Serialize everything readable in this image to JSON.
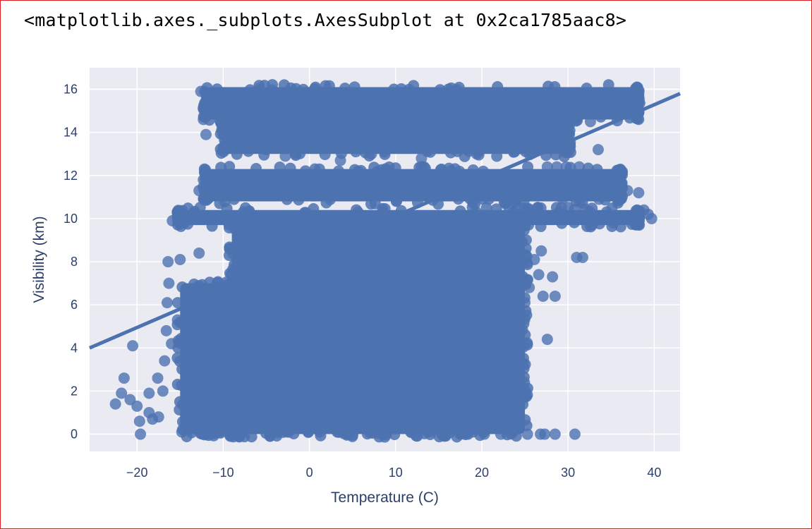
{
  "output_header": "<matplotlib.axes._subplots.AxesSubplot at 0x2ca1785aac8>",
  "colors": {
    "plot_background": "#eaeaf2",
    "grid": "#ffffff",
    "points": "#4c72b0",
    "regression_line": "#4c72b0",
    "text": "#2a3f6b",
    "frame_border": "#e02020"
  },
  "chart_data": {
    "type": "scatter",
    "xlabel": "Temperature (C)",
    "ylabel": "Visibility (km)",
    "xlim": [
      -25.5,
      43
    ],
    "ylim": [
      -0.8,
      17
    ],
    "xticks": [
      -20,
      -10,
      0,
      10,
      20,
      30,
      40
    ],
    "xtick_labels": [
      "−20",
      "−10",
      "0",
      "10",
      "20",
      "30",
      "40"
    ],
    "yticks": [
      0,
      2,
      4,
      6,
      8,
      10,
      12,
      14,
      16
    ],
    "ytick_labels": [
      "0",
      "2",
      "4",
      "6",
      "8",
      "10",
      "12",
      "14",
      "16"
    ],
    "grid": true,
    "regression_line": {
      "x": [
        -25.5,
        43
      ],
      "y": [
        4.0,
        15.8
      ]
    },
    "dense_regions": [
      {
        "x": [
          -12,
          38
        ],
        "y": [
          14.6,
          16.1
        ]
      },
      {
        "x": [
          -10,
          30
        ],
        "y": [
          13.0,
          15.0
        ]
      },
      {
        "x": [
          -12,
          36
        ],
        "y": [
          10.8,
          12.3
        ]
      },
      {
        "x": [
          -15,
          38
        ],
        "y": [
          9.7,
          10.4
        ]
      },
      {
        "x": [
          -9,
          25
        ],
        "y": [
          0.0,
          9.8
        ]
      },
      {
        "x": [
          -12,
          19
        ],
        "y": [
          0.0,
          6.0
        ]
      },
      {
        "x": [
          -15,
          -8
        ],
        "y": [
          0.0,
          7.0
        ]
      },
      {
        "x": [
          17,
          23
        ],
        "y": [
          3.0,
          9.0
        ]
      }
    ],
    "outlier_points": [
      {
        "x": -20.5,
        "y": 4.1
      },
      {
        "x": -22.5,
        "y": 1.4
      },
      {
        "x": -21.5,
        "y": 2.6
      },
      {
        "x": -21.8,
        "y": 1.9
      },
      {
        "x": -20.8,
        "y": 1.6
      },
      {
        "x": -20.0,
        "y": 1.3
      },
      {
        "x": -19.7,
        "y": 0.6
      },
      {
        "x": -19.6,
        "y": 0.0
      },
      {
        "x": -18.6,
        "y": 1.0
      },
      {
        "x": -18.2,
        "y": 0.7
      },
      {
        "x": -17.5,
        "y": 0.8
      },
      {
        "x": -18.6,
        "y": 1.9
      },
      {
        "x": -17.6,
        "y": 2.6
      },
      {
        "x": -17.0,
        "y": 2.0
      },
      {
        "x": -16.8,
        "y": 3.4
      },
      {
        "x": -16.0,
        "y": 4.2
      },
      {
        "x": -16.6,
        "y": 4.8
      },
      {
        "x": -16.5,
        "y": 6.1
      },
      {
        "x": -16.3,
        "y": 7.0
      },
      {
        "x": -16.4,
        "y": 8.0
      },
      {
        "x": -15.3,
        "y": 5.3
      },
      {
        "x": -15.0,
        "y": 8.1
      },
      {
        "x": -14.8,
        "y": 9.9
      },
      {
        "x": -15.9,
        "y": 9.9
      },
      {
        "x": -14.8,
        "y": 0.1
      },
      {
        "x": -12.6,
        "y": 15.9
      },
      {
        "x": -12.3,
        "y": 14.6
      },
      {
        "x": -12.3,
        "y": 11.8
      },
      {
        "x": -12.8,
        "y": 11.3
      },
      {
        "x": -12.0,
        "y": 13.9
      },
      {
        "x": -13.0,
        "y": 4.9
      },
      {
        "x": -14.2,
        "y": 6.0
      },
      {
        "x": -12.8,
        "y": 8.4
      },
      {
        "x": 21.5,
        "y": 2.2
      },
      {
        "x": 22.0,
        "y": 1.8
      },
      {
        "x": 22.2,
        "y": 0.0
      },
      {
        "x": 22.4,
        "y": 0.7
      },
      {
        "x": 24.4,
        "y": 4.1
      },
      {
        "x": 23.9,
        "y": 5.1
      },
      {
        "x": 25.0,
        "y": 6.1
      },
      {
        "x": 25.5,
        "y": 6.8
      },
      {
        "x": 26.1,
        "y": 8.1
      },
      {
        "x": 26.6,
        "y": 7.4
      },
      {
        "x": 27.1,
        "y": 6.4
      },
      {
        "x": 28.2,
        "y": 7.3
      },
      {
        "x": 28.5,
        "y": 6.4
      },
      {
        "x": 27.6,
        "y": 4.4
      },
      {
        "x": 25.3,
        "y": 0.0
      },
      {
        "x": 26.8,
        "y": 0.0
      },
      {
        "x": 27.3,
        "y": 0.0
      },
      {
        "x": 28.5,
        "y": 0.0
      },
      {
        "x": 30.8,
        "y": 0.0
      },
      {
        "x": 31.0,
        "y": 8.2
      },
      {
        "x": 31.7,
        "y": 8.2
      },
      {
        "x": 26.9,
        "y": 8.5
      },
      {
        "x": 27.6,
        "y": 12.4
      },
      {
        "x": 28.7,
        "y": 12.4
      },
      {
        "x": 29.8,
        "y": 12.4
      },
      {
        "x": 31.3,
        "y": 12.4
      },
      {
        "x": 30.1,
        "y": 11.4
      },
      {
        "x": 39.7,
        "y": 10.0
      },
      {
        "x": 39.3,
        "y": 10.2
      },
      {
        "x": 38.8,
        "y": 10.4
      },
      {
        "x": 38.2,
        "y": 11.2
      },
      {
        "x": 33.5,
        "y": 13.2
      },
      {
        "x": 32.6,
        "y": 14.5
      },
      {
        "x": 33.0,
        "y": 15.0
      },
      {
        "x": 29.4,
        "y": 14.3
      },
      {
        "x": 30.8,
        "y": 14.9
      },
      {
        "x": 38.0,
        "y": 16.1
      },
      {
        "x": 36.5,
        "y": 15.4
      },
      {
        "x": 34.9,
        "y": 15.2
      },
      {
        "x": 35.7,
        "y": 14.8
      },
      {
        "x": 37.5,
        "y": 15.7
      },
      {
        "x": 36.9,
        "y": 11.3
      },
      {
        "x": 34.4,
        "y": 11.1
      },
      {
        "x": 35.2,
        "y": 10.0
      },
      {
        "x": 33.6,
        "y": 10.9
      },
      {
        "x": 32.7,
        "y": 10.1
      },
      {
        "x": 19.8,
        "y": 2.4
      },
      {
        "x": 19.6,
        "y": 1.7
      },
      {
        "x": 20.3,
        "y": 0.0
      },
      {
        "x": 18.4,
        "y": 0.0
      },
      {
        "x": 17.5,
        "y": 0.0
      },
      {
        "x": 19.3,
        "y": 4.6
      },
      {
        "x": 20.5,
        "y": 3.4
      },
      {
        "x": -7.0,
        "y": 14.1
      },
      {
        "x": -5.0,
        "y": 13.2
      },
      {
        "x": -2.8,
        "y": 12.9
      },
      {
        "x": 3.6,
        "y": 12.7
      },
      {
        "x": 7.2,
        "y": 13.0
      },
      {
        "x": 13.0,
        "y": 12.8
      },
      {
        "x": 19.4,
        "y": 13.0
      },
      {
        "x": 22.6,
        "y": 13.6
      },
      {
        "x": 24.7,
        "y": 13.9
      }
    ]
  }
}
